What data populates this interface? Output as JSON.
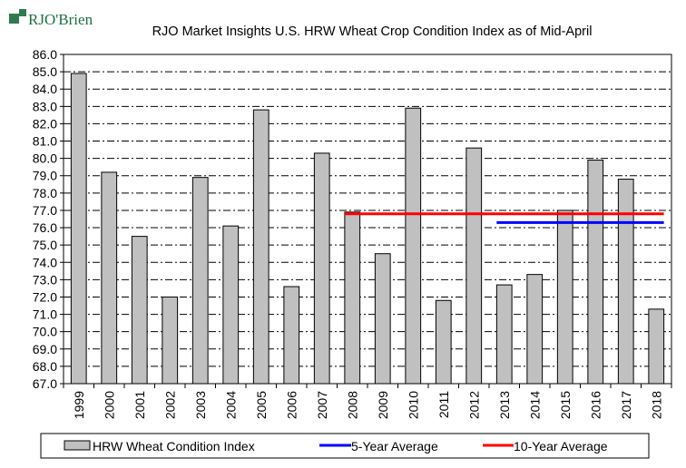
{
  "brand": {
    "name": "RJO'Brien",
    "mark_color": "#2f7a4f",
    "text_color": "#1d7044"
  },
  "chart_data": {
    "type": "bar",
    "title": "RJO Market Insights U.S. HRW Wheat Crop Condition Index as of Mid-April",
    "categories": [
      "1999",
      "2000",
      "2001",
      "2002",
      "2003",
      "2004",
      "2005",
      "2006",
      "2007",
      "2008",
      "2009",
      "2010",
      "2011",
      "2012",
      "2013",
      "2014",
      "2015",
      "2016",
      "2017",
      "2018"
    ],
    "series": [
      {
        "name": "HRW Wheat Condition Index",
        "values": [
          84.9,
          79.2,
          75.5,
          72.0,
          78.9,
          76.1,
          82.8,
          72.6,
          80.3,
          76.9,
          74.5,
          82.9,
          71.8,
          80.6,
          72.7,
          73.3,
          77.0,
          79.9,
          78.8,
          71.3
        ],
        "color": "#c0c0c0"
      }
    ],
    "lines": [
      {
        "name": "5-Year Average",
        "value": 76.3,
        "from": "2013",
        "to": "2018",
        "color": "#0000ff"
      },
      {
        "name": "10-Year Average",
        "value": 76.8,
        "from": "2008",
        "to": "2018",
        "color": "#ff0000"
      }
    ],
    "ylim": [
      67.0,
      86.0
    ],
    "ytick_step": 1.0,
    "ytick_decimals": 1,
    "grid": true,
    "legend_position": "bottom"
  }
}
